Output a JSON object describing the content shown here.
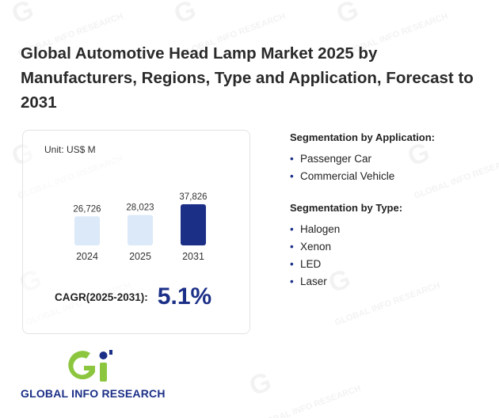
{
  "title": "Global Automotive Head Lamp Market 2025 by Manufacturers, Regions, Type and Application, Forecast to 2031",
  "watermark_text": "GLOBAL INFO RESEARCH",
  "chart_data": {
    "type": "bar",
    "unit": "Unit: US$ M",
    "categories": [
      "2024",
      "2025",
      "2031"
    ],
    "values": [
      26726,
      28023,
      37826
    ],
    "value_labels": [
      "26,726",
      "28,023",
      "37,826"
    ],
    "bar_colors": [
      "#dbe9f8",
      "#dbe9f8",
      "#1b2f87"
    ],
    "title": "",
    "xlabel": "",
    "ylabel": "",
    "grid": false
  },
  "cagr": {
    "label": "CAGR(2025-2031):",
    "value": "5.1%"
  },
  "segments": [
    {
      "title": "Segmentation by Application:",
      "items": [
        "Passenger Car",
        "Commercial Vehicle"
      ]
    },
    {
      "title": "Segmentation by Type:",
      "items": [
        "Halogen",
        "Xenon",
        "LED",
        "Laser"
      ]
    }
  ],
  "logo": {
    "text": "GLOBAL INFO RESEARCH"
  },
  "colors": {
    "accent": "#1b2f87",
    "light_bar": "#dbe9f8",
    "logo_green": "#8cc63f"
  }
}
